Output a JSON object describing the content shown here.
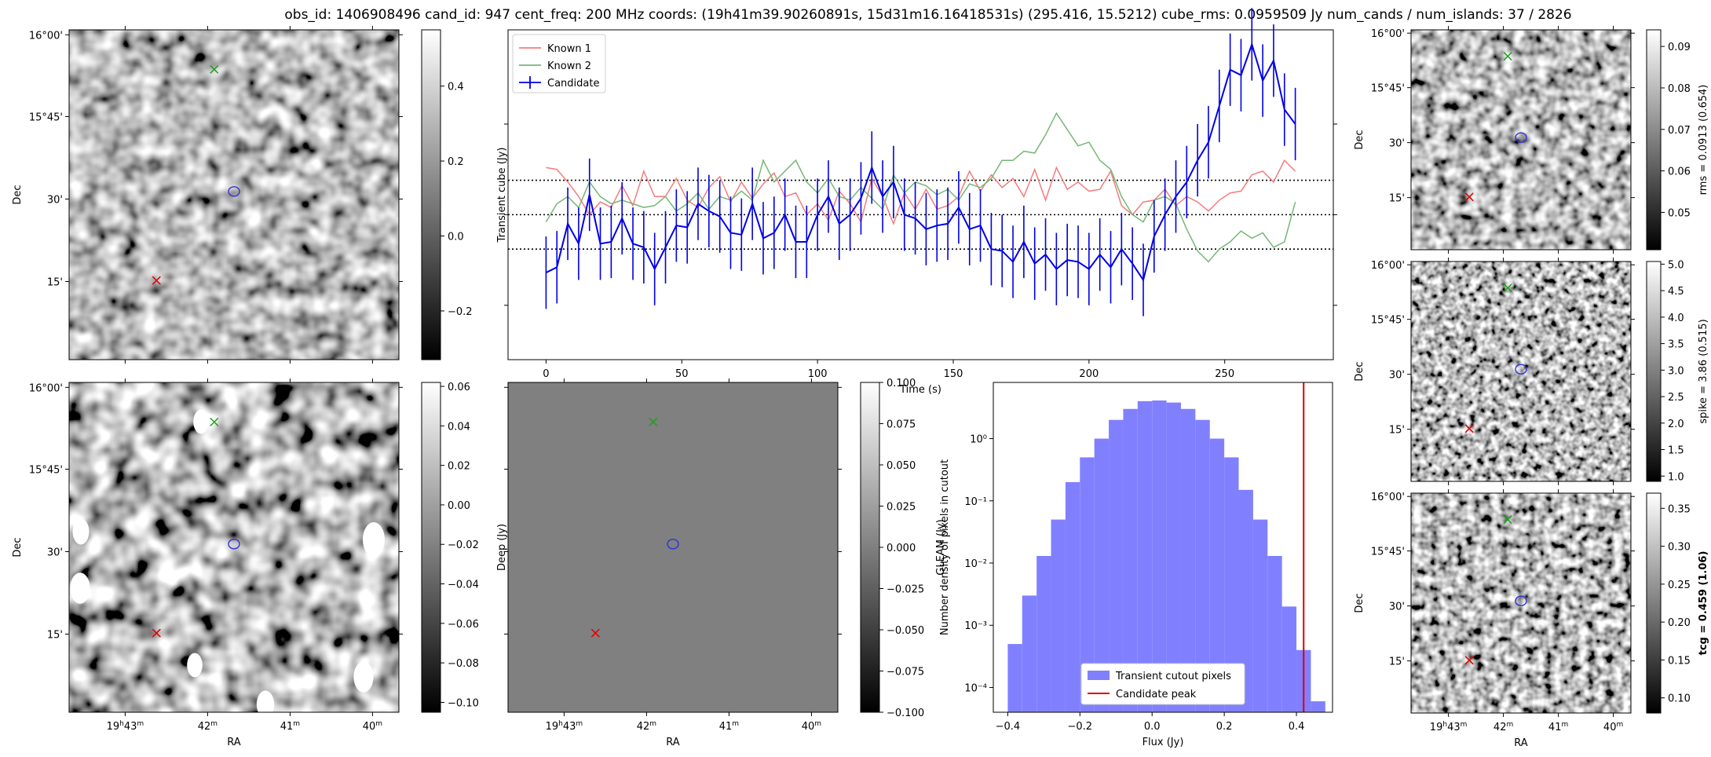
{
  "title": "obs_id: 1406908496 cand_id: 947 cent_freq: 200 MHz coords: (19h41m39.90260891s, 15d31m16.16418531s) (295.416, 15.5212) cube_rms: 0.0959509 Jy num_cands / num_islands: 37 / 2826",
  "image_axes": {
    "dec_ticks": [
      "16°00'",
      "15°45'",
      "30'",
      "15'"
    ],
    "ra_ticks": [
      "19h43m",
      "42m",
      "41m",
      "40m"
    ],
    "xlabel": "RA",
    "ylabel": "Dec"
  },
  "panels": {
    "transient": {
      "colorbar_label": "Transient cube (Jy)",
      "cbar_ticks": [
        "0.4",
        "0.2",
        "0.0",
        "−0.2"
      ],
      "cbar_values": [
        0.4,
        0.2,
        0.0,
        -0.2
      ],
      "cbar_range": [
        -0.33,
        0.55
      ]
    },
    "deep": {
      "colorbar_label": "Deep (Jy)",
      "cbar_ticks": [
        "0.06",
        "0.04",
        "0.02",
        "0.00",
        "−0.02",
        "−0.04",
        "−0.06",
        "−0.08",
        "−0.10"
      ],
      "cbar_values": [
        0.06,
        0.04,
        0.02,
        0.0,
        -0.02,
        -0.04,
        -0.06,
        -0.08,
        -0.1
      ],
      "cbar_range": [
        -0.105,
        0.062
      ]
    },
    "gleam": {
      "colorbar_label": "GLEAM (Jy)",
      "cbar_ticks": [
        "0.100",
        "0.075",
        "0.050",
        "0.025",
        "0.000",
        "−0.025",
        "−0.050",
        "−0.075",
        "−0.100"
      ],
      "cbar_values": [
        0.1,
        0.075,
        0.05,
        0.025,
        0.0,
        -0.025,
        -0.05,
        -0.075,
        -0.1
      ],
      "cbar_range": [
        -0.1,
        0.1
      ]
    },
    "rms": {
      "colorbar_label": "rms = 0.0913 (0.654)",
      "cbar_ticks": [
        "0.09",
        "0.08",
        "0.07",
        "0.06",
        "0.05"
      ],
      "cbar_values": [
        0.09,
        0.08,
        0.07,
        0.06,
        0.05
      ],
      "cbar_range": [
        0.041,
        0.094
      ]
    },
    "spike": {
      "colorbar_label": "spike = 3.86 (0.515)",
      "cbar_ticks": [
        "5.0",
        "4.5",
        "4.0",
        "3.5",
        "3.0",
        "2.5",
        "2.0",
        "1.5",
        "1.0"
      ],
      "cbar_values": [
        5.0,
        4.5,
        4.0,
        3.5,
        3.0,
        2.5,
        2.0,
        1.5,
        1.0
      ],
      "cbar_range": [
        0.9,
        5.05
      ]
    },
    "tcg": {
      "colorbar_label": "tcg = 0.459 (1.06)",
      "cbar_ticks": [
        "0.35",
        "0.30",
        "0.25",
        "0.20",
        "0.15",
        "0.10"
      ],
      "cbar_values": [
        0.35,
        0.3,
        0.25,
        0.2,
        0.15,
        0.1
      ],
      "cbar_range": [
        0.08,
        0.37
      ]
    }
  },
  "chart_data": [
    {
      "type": "line",
      "xlabel": "Time (s)",
      "xlim": [
        -14,
        290
      ],
      "ylim": [
        -0.8,
        1.02
      ],
      "xticks": [
        0,
        50,
        100,
        150,
        200,
        250
      ],
      "hlines": [
        0.19,
        0.0,
        -0.19
      ],
      "legend": {
        "placement": "top-left",
        "entries": [
          "Known 1",
          "Known 2",
          "Candidate"
        ]
      },
      "colors": {
        "known1": "#f47c7c",
        "known2": "#74b874",
        "candidate": "#0000e6"
      },
      "series": [
        {
          "name": "Known 1",
          "x": [
            0,
            4,
            8,
            12,
            16,
            20,
            24,
            28,
            32,
            36,
            40,
            44,
            48,
            52,
            56,
            60,
            64,
            68,
            72,
            76,
            80,
            84,
            88,
            92,
            96,
            100,
            104,
            108,
            112,
            116,
            120,
            124,
            128,
            132,
            136,
            140,
            144,
            148,
            152,
            156,
            160,
            164,
            168,
            172,
            176,
            180,
            184,
            188,
            192,
            196,
            200,
            204,
            208,
            212,
            216,
            220,
            224,
            228,
            232,
            236,
            240,
            244,
            248,
            252,
            256,
            260,
            264,
            268,
            272,
            276
          ],
          "values": [
            0.26,
            0.25,
            0.18,
            0.1,
            0.0,
            0.07,
            0.04,
            0.16,
            0.05,
            0.24,
            0.1,
            0.1,
            0.2,
            0.08,
            0.04,
            0.15,
            0.21,
            0.07,
            0.18,
            0.09,
            0.17,
            0.23,
            0.1,
            0.12,
            0.0,
            0.06,
            -0.03,
            0.13,
            0.06,
            -0.04,
            0.2,
            0.1,
            -0.05,
            0.12,
            0.03,
            0.14,
            0.03,
            0.05,
            0.1,
            0.24,
            0.13,
            0.22,
            0.15,
            0.2,
            0.1,
            0.25,
            0.08,
            0.26,
            0.14,
            0.18,
            0.13,
            0.14,
            0.24,
            0.05,
            0.0,
            0.07,
            0.08,
            0.14,
            0.05,
            0.1,
            0.07,
            0.02,
            0.08,
            0.12,
            0.13,
            0.22,
            0.24,
            0.18,
            0.3,
            0.24
          ]
        },
        {
          "name": "Known 2",
          "x": [
            0,
            4,
            8,
            12,
            16,
            20,
            24,
            28,
            32,
            36,
            40,
            44,
            48,
            52,
            56,
            60,
            64,
            68,
            72,
            76,
            80,
            84,
            88,
            92,
            96,
            100,
            104,
            108,
            112,
            116,
            120,
            124,
            128,
            132,
            136,
            140,
            144,
            148,
            152,
            156,
            160,
            164,
            168,
            172,
            176,
            180,
            184,
            188,
            192,
            196,
            200,
            204,
            208,
            212,
            216,
            220,
            224,
            228,
            232,
            236,
            240,
            244,
            248,
            252,
            256,
            260,
            264,
            268,
            272,
            276
          ],
          "values": [
            -0.04,
            0.06,
            0.1,
            0.04,
            0.18,
            0.1,
            0.06,
            0.08,
            0.06,
            0.04,
            0.05,
            0.1,
            0.02,
            0.06,
            0.12,
            0.03,
            0.1,
            0.08,
            0.13,
            0.08,
            0.3,
            0.18,
            0.24,
            0.3,
            0.18,
            0.12,
            0.2,
            0.1,
            0.08,
            0.15,
            0.09,
            0.03,
            0.22,
            0.12,
            0.18,
            0.16,
            0.11,
            0.14,
            0.08,
            0.17,
            0.15,
            0.2,
            0.3,
            0.3,
            0.35,
            0.34,
            0.44,
            0.56,
            0.47,
            0.38,
            0.4,
            0.3,
            0.25,
            0.1,
            0.0,
            -0.04,
            0.08,
            0.1,
            0.06,
            -0.08,
            -0.2,
            -0.26,
            -0.19,
            -0.15,
            -0.09,
            -0.13,
            -0.1,
            -0.18,
            -0.15,
            0.07
          ]
        },
        {
          "name": "Candidate",
          "x": [
            0,
            4,
            8,
            12,
            16,
            20,
            24,
            28,
            32,
            36,
            40,
            44,
            48,
            52,
            56,
            60,
            64,
            68,
            72,
            76,
            80,
            84,
            88,
            92,
            96,
            100,
            104,
            108,
            112,
            116,
            120,
            124,
            128,
            132,
            136,
            140,
            144,
            148,
            152,
            156,
            160,
            164,
            168,
            172,
            176,
            180,
            184,
            188,
            192,
            196,
            200,
            204,
            208,
            212,
            216,
            220,
            224,
            228,
            232,
            236,
            240,
            244,
            248,
            252,
            256,
            260,
            264,
            268,
            272,
            276
          ],
          "values": [
            -0.32,
            -0.29,
            -0.05,
            -0.16,
            0.11,
            -0.16,
            -0.15,
            -0.02,
            -0.16,
            -0.18,
            -0.3,
            -0.18,
            -0.06,
            -0.07,
            0.06,
            0.02,
            -0.01,
            -0.1,
            -0.11,
            0.06,
            -0.13,
            -0.1,
            0.0,
            -0.15,
            -0.15,
            0.0,
            0.1,
            -0.05,
            0.0,
            0.09,
            0.26,
            0.1,
            0.18,
            0.0,
            -0.02,
            -0.08,
            -0.06,
            -0.05,
            0.04,
            -0.08,
            -0.06,
            -0.19,
            -0.2,
            -0.26,
            -0.15,
            -0.27,
            -0.22,
            -0.3,
            -0.25,
            -0.26,
            -0.3,
            -0.22,
            -0.29,
            -0.19,
            -0.27,
            -0.36,
            -0.12,
            0.0,
            0.1,
            0.18,
            0.3,
            0.4,
            0.6,
            0.8,
            0.77,
            0.94,
            0.74,
            0.85,
            0.58,
            0.5
          ],
          "errors": [
            0.2,
            0.2,
            0.2,
            0.2,
            0.2,
            0.2,
            0.2,
            0.2,
            0.2,
            0.2,
            0.2,
            0.2,
            0.2,
            0.2,
            0.2,
            0.2,
            0.2,
            0.2,
            0.2,
            0.2,
            0.2,
            0.2,
            0.2,
            0.2,
            0.2,
            0.2,
            0.2,
            0.2,
            0.2,
            0.2,
            0.2,
            0.2,
            0.2,
            0.2,
            0.2,
            0.2,
            0.2,
            0.2,
            0.2,
            0.2,
            0.2,
            0.2,
            0.2,
            0.2,
            0.2,
            0.2,
            0.2,
            0.2,
            0.2,
            0.2,
            0.2,
            0.2,
            0.2,
            0.2,
            0.2,
            0.2,
            0.2,
            0.2,
            0.2,
            0.2,
            0.2,
            0.2,
            0.2,
            0.2,
            0.2,
            0.2,
            0.2,
            0.2,
            0.2,
            0.2
          ]
        }
      ]
    },
    {
      "type": "bar",
      "xlabel": "Flux (Jy)",
      "ylabel": "Number density of pixels in cutout",
      "log_y": true,
      "xlim": [
        -0.44,
        0.5
      ],
      "ylim": [
        4e-05,
        8
      ],
      "xticks": [
        -0.4,
        -0.2,
        0.0,
        0.2,
        0.4
      ],
      "xtick_labels": [
        "−0.4",
        "−0.2",
        "0.0",
        "0.2",
        "0.4"
      ],
      "yticks": [
        0.0001,
        0.001,
        0.01,
        0.1,
        1
      ],
      "ytick_labels": [
        "10⁻⁴",
        "10⁻³",
        "10⁻²",
        "10⁻¹",
        "10⁰"
      ],
      "bin_edges": [
        -0.4,
        -0.36,
        -0.32,
        -0.28,
        -0.24,
        -0.2,
        -0.16,
        -0.12,
        -0.08,
        -0.04,
        0.0,
        0.04,
        0.08,
        0.12,
        0.16,
        0.2,
        0.24,
        0.28,
        0.32,
        0.36,
        0.4,
        0.44,
        0.48
      ],
      "values": [
        0.0005,
        0.003,
        0.013,
        0.05,
        0.2,
        0.5,
        1.0,
        2.0,
        3.0,
        4.0,
        4.1,
        3.8,
        3.0,
        2.0,
        1.0,
        0.5,
        0.15,
        0.05,
        0.013,
        0.002,
        0.0004,
        6e-05
      ],
      "candidate_peak": 0.42,
      "legend": {
        "placement": "bottom-center",
        "entries": [
          "Transient cutout pixels",
          "Candidate peak"
        ]
      },
      "colors": {
        "bars": "#8080ff",
        "peak": "#e00000"
      }
    }
  ]
}
